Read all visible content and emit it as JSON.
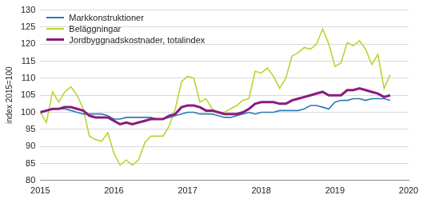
{
  "chart_data": {
    "type": "line",
    "y_label": "index 2015=100",
    "x": [
      2015,
      2015.083,
      2015.167,
      2015.25,
      2015.333,
      2015.417,
      2015.5,
      2015.583,
      2015.667,
      2015.75,
      2015.833,
      2015.917,
      2016,
      2016.083,
      2016.167,
      2016.25,
      2016.333,
      2016.417,
      2016.5,
      2016.583,
      2016.667,
      2016.75,
      2016.833,
      2016.917,
      2017,
      2017.083,
      2017.167,
      2017.25,
      2017.333,
      2017.417,
      2017.5,
      2017.583,
      2017.667,
      2017.75,
      2017.833,
      2017.917,
      2018,
      2018.083,
      2018.167,
      2018.25,
      2018.333,
      2018.417,
      2018.5,
      2018.583,
      2018.667,
      2018.75,
      2018.833,
      2018.917,
      2019,
      2019.083,
      2019.167,
      2019.25,
      2019.333,
      2019.417,
      2019.5,
      2019.583,
      2019.667,
      2019.75
    ],
    "series": [
      {
        "name": "Markkonstruktioner",
        "color": "#2a7ab8",
        "values": [
          100,
          100.5,
          101,
          101,
          101,
          100.5,
          100,
          99.5,
          99.5,
          99.5,
          99.5,
          99,
          98,
          98,
          98.5,
          98.5,
          98.5,
          98.5,
          98.5,
          98,
          98,
          98.5,
          99,
          99.5,
          100,
          100,
          99.5,
          99.5,
          99.5,
          99,
          98.5,
          98.5,
          99,
          99.5,
          100,
          99.5,
          100,
          100,
          100,
          100.5,
          100.5,
          100.5,
          100.5,
          101,
          102,
          102,
          101.5,
          101,
          103,
          103.5,
          103.5,
          104,
          104,
          103.5,
          104,
          104,
          104,
          103.5
        ]
      },
      {
        "name": "Beläggningar",
        "color": "#b9d531",
        "values": [
          100,
          97,
          106,
          103,
          106,
          107.5,
          105,
          101,
          93,
          92,
          91.5,
          94,
          88,
          84.5,
          86,
          84.5,
          86,
          91,
          93,
          93,
          93,
          96,
          101,
          109,
          110.5,
          110,
          103,
          104,
          101,
          100,
          100,
          101,
          102,
          103.5,
          104,
          112,
          111.5,
          113,
          110.5,
          107,
          110,
          116.5,
          117.5,
          119,
          118.5,
          120,
          124.5,
          120,
          113.5,
          114.5,
          120.5,
          119.5,
          121,
          118.5,
          114,
          117,
          107,
          111
        ]
      },
      {
        "name": "Jordbyggnadskostnader, totalindex",
        "color": "#8a1b7f",
        "values": [
          100,
          100.5,
          101,
          101,
          101.5,
          101.5,
          101,
          100.5,
          99,
          98.5,
          98.5,
          98.5,
          97.5,
          96.5,
          97,
          96.5,
          97,
          97.5,
          98,
          98,
          98,
          99,
          99.5,
          101.5,
          102,
          102,
          101.5,
          100.5,
          100.5,
          100,
          99.5,
          99.5,
          99.5,
          100,
          101,
          102.5,
          103,
          103,
          103,
          102.5,
          102.5,
          103.5,
          104,
          104.5,
          105,
          105.5,
          106,
          105,
          105,
          105,
          106.5,
          106.5,
          107,
          106.5,
          106,
          105.5,
          104.5,
          105
        ]
      }
    ],
    "xlim": [
      2015,
      2020
    ],
    "xticks": [
      2015,
      2016,
      2017,
      2018,
      2019,
      2020
    ],
    "ylim": [
      80,
      130
    ],
    "yticks": [
      80,
      85,
      90,
      95,
      100,
      105,
      110,
      115,
      120,
      125,
      130
    ],
    "grid": true,
    "legend": "upper left"
  }
}
